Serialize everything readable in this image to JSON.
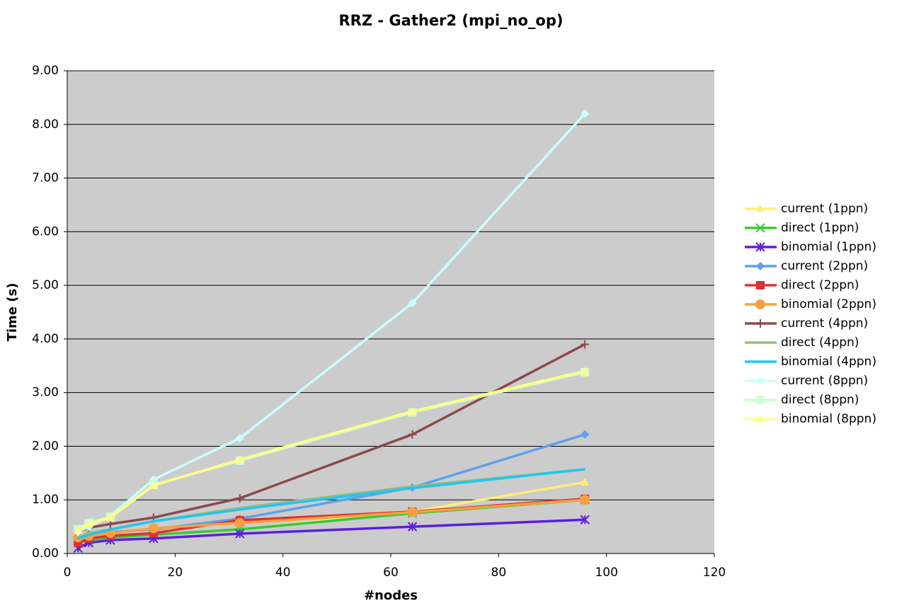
{
  "chart_data": {
    "type": "line",
    "title": "RRZ - Gather2 (mpi_no_op)",
    "x_label": "#nodes",
    "y_label": "Time (s)",
    "x": [
      2,
      4,
      8,
      16,
      32,
      64,
      96
    ],
    "xlim": [
      0,
      120
    ],
    "xticks": [
      0,
      20,
      40,
      60,
      80,
      100,
      120
    ],
    "ylim": [
      0,
      9
    ],
    "yticks": [
      {
        "value": 0,
        "label": "0.00"
      },
      {
        "value": 1,
        "label": "1.00"
      },
      {
        "value": 2,
        "label": "2.00"
      },
      {
        "value": 3,
        "label": "3.00"
      },
      {
        "value": 4,
        "label": "4.00"
      },
      {
        "value": 5,
        "label": "5.00"
      },
      {
        "value": 6,
        "label": "6.00"
      },
      {
        "value": 7,
        "label": "7.00"
      },
      {
        "value": 8,
        "label": "8.00"
      },
      {
        "value": 9,
        "label": "9.00"
      }
    ],
    "grid": true,
    "legend": "right",
    "plot_background": "#cccccc",
    "series": [
      {
        "name": "current (1ppn)",
        "color": "#ffee77",
        "marker": "triangle",
        "values": [
          0.2,
          0.25,
          0.3,
          0.35,
          0.45,
          0.78,
          1.33
        ]
      },
      {
        "name": "direct (1ppn)",
        "color": "#33cc33",
        "marker": "x",
        "values": [
          0.2,
          0.25,
          0.3,
          0.35,
          0.45,
          0.75,
          1.0
        ]
      },
      {
        "name": "binomial (1ppn)",
        "color": "#5a1fe0",
        "marker": "asterisk",
        "values": [
          0.1,
          0.2,
          0.25,
          0.28,
          0.37,
          0.5,
          0.63
        ]
      },
      {
        "name": "current (2ppn)",
        "color": "#5fa0f0",
        "marker": "diamond",
        "values": [
          0.3,
          0.35,
          0.4,
          0.45,
          0.65,
          1.23,
          2.22
        ]
      },
      {
        "name": "direct (2ppn)",
        "color": "#e03030",
        "marker": "square",
        "values": [
          0.2,
          0.28,
          0.33,
          0.38,
          0.62,
          0.78,
          1.02
        ]
      },
      {
        "name": "binomial (2ppn)",
        "color": "#f7a040",
        "marker": "circle",
        "values": [
          0.3,
          0.33,
          0.38,
          0.47,
          0.57,
          0.77,
          1.0
        ]
      },
      {
        "name": "current (4ppn)",
        "color": "#8b4a4a",
        "marker": "plus",
        "values": [
          0.4,
          0.48,
          0.55,
          0.67,
          1.03,
          2.22,
          3.9
        ]
      },
      {
        "name": "direct (4ppn)",
        "color": "#99bb88",
        "marker": "none",
        "values": [
          0.3,
          0.38,
          0.45,
          0.6,
          0.85,
          1.25,
          1.57
        ]
      },
      {
        "name": "binomial (4ppn)",
        "color": "#1ec8ee",
        "marker": "none",
        "values": [
          0.28,
          0.35,
          0.45,
          0.6,
          0.82,
          1.22,
          1.57
        ]
      },
      {
        "name": "current (8ppn)",
        "color": "#c8ffff",
        "marker": "diamond",
        "values": [
          0.4,
          0.5,
          0.7,
          1.38,
          2.15,
          4.67,
          8.2
        ]
      },
      {
        "name": "direct (8ppn)",
        "color": "#ccffcc",
        "marker": "square",
        "values": [
          0.45,
          0.57,
          0.68,
          1.28,
          1.73,
          2.63,
          3.38
        ]
      },
      {
        "name": "binomial (8ppn)",
        "color": "#ffff88",
        "marker": "triangle",
        "values": [
          0.43,
          0.55,
          0.67,
          1.27,
          1.75,
          2.65,
          3.4
        ]
      }
    ]
  }
}
